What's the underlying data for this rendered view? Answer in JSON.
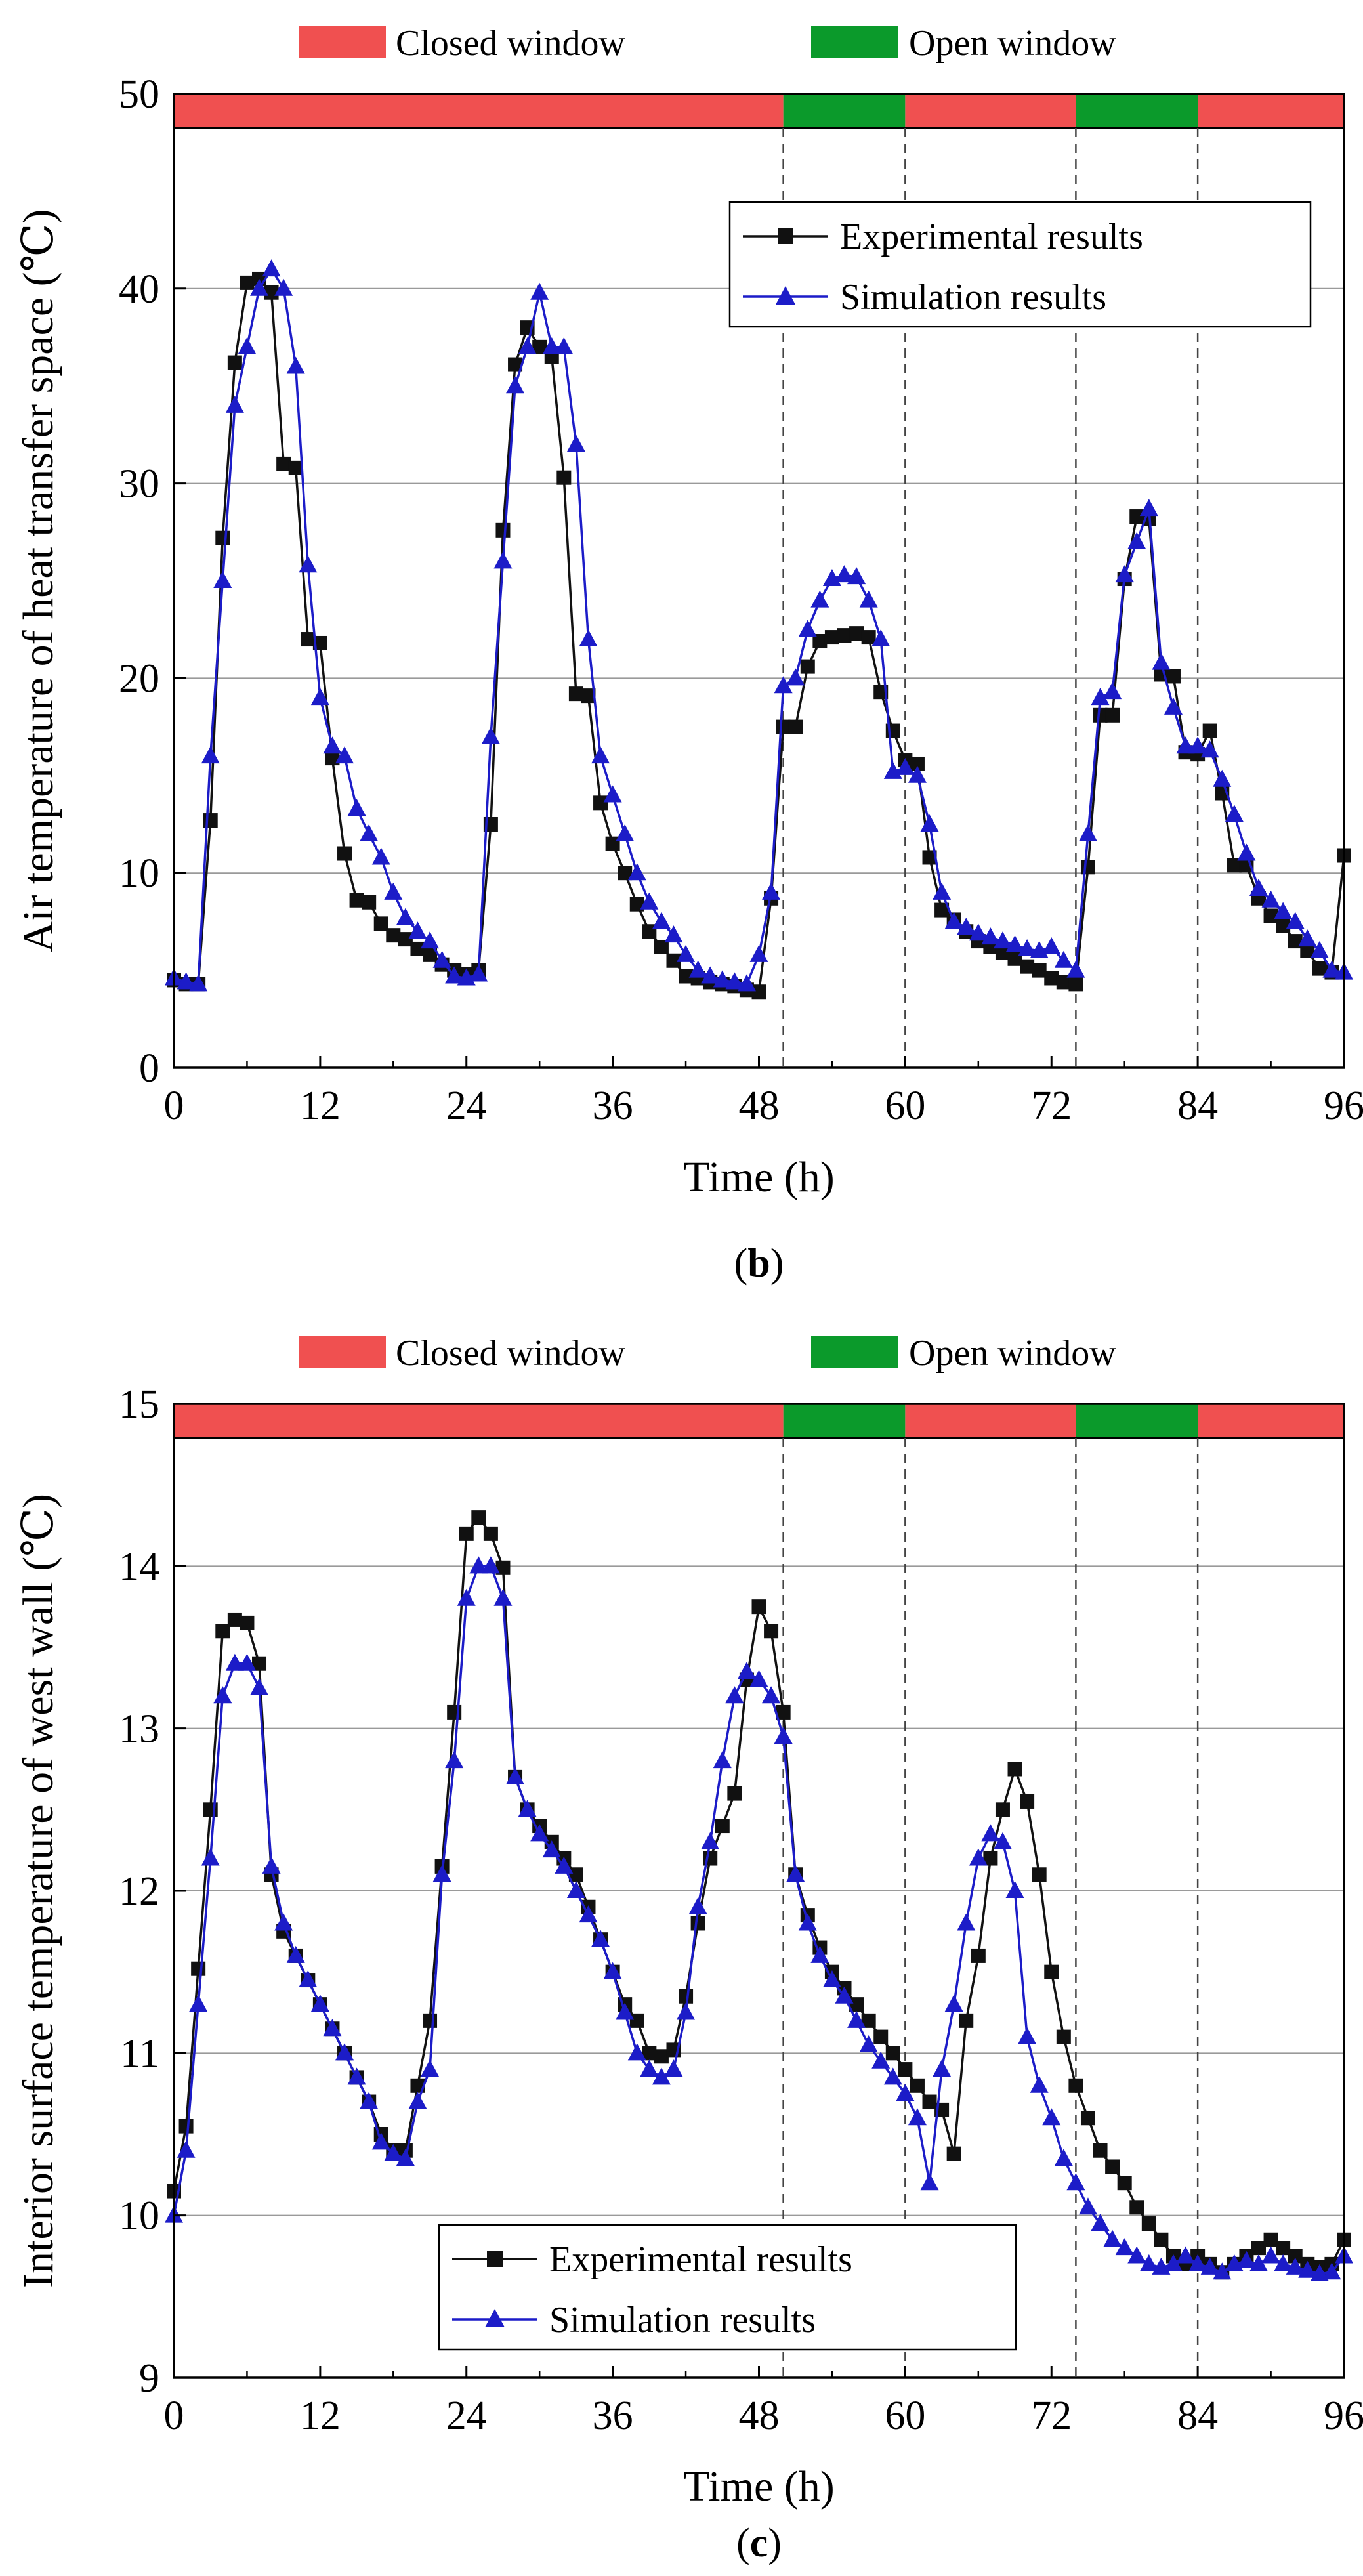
{
  "chart_data": [
    {
      "id": "b",
      "type": "line",
      "panel_label": "(b)",
      "panel_label_parts": [
        "(",
        "b",
        ")"
      ],
      "xlabel": "Time (h)",
      "ylabel": "Air temperature of heat transfer space (℃)",
      "xlim": [
        0,
        96
      ],
      "ylim": [
        0,
        50
      ],
      "xticks": [
        "0",
        "12",
        "24",
        "36",
        "48",
        "60",
        "72",
        "84",
        "96"
      ],
      "yticks": [
        "0",
        "10",
        "20",
        "30",
        "40",
        "50"
      ],
      "grid": "horizontal",
      "window_band": {
        "legend": [
          {
            "label": "Closed window",
            "color": "#f05050"
          },
          {
            "label": "Open window",
            "color": "#0b9a2b"
          }
        ],
        "segments": [
          {
            "state": "closed",
            "from": 0,
            "to": 50
          },
          {
            "state": "open",
            "from": 50,
            "to": 60
          },
          {
            "state": "closed",
            "from": 60,
            "to": 74
          },
          {
            "state": "open",
            "from": 74,
            "to": 84
          },
          {
            "state": "closed",
            "from": 84,
            "to": 96
          }
        ],
        "dashed_lines_x": [
          50,
          60,
          74,
          84
        ]
      },
      "legend": "top-right",
      "series": [
        {
          "name": "Experimental results",
          "color": "#111111",
          "marker": "square",
          "x": [
            0,
            1,
            2,
            3,
            4,
            5,
            6,
            7,
            8,
            9,
            10,
            11,
            12,
            13,
            14,
            15,
            16,
            17,
            18,
            19,
            20,
            21,
            22,
            23,
            24,
            25,
            26,
            27,
            28,
            29,
            30,
            31,
            32,
            33,
            34,
            35,
            36,
            37,
            38,
            39,
            40,
            41,
            42,
            43,
            44,
            45,
            46,
            47,
            48,
            49,
            50,
            51,
            52,
            53,
            54,
            55,
            56,
            57,
            58,
            59,
            60,
            61,
            62,
            63,
            64,
            65,
            66,
            67,
            68,
            69,
            70,
            71,
            72,
            73,
            74,
            75,
            76,
            77,
            78,
            79,
            80,
            81,
            82,
            83,
            84,
            85,
            86,
            87,
            88,
            89,
            90,
            91,
            92,
            93,
            94,
            95,
            96
          ],
          "values": [
            4.5,
            4.3,
            4.3,
            12.7,
            27.2,
            36.2,
            40.3,
            40.5,
            39.8,
            31,
            30.8,
            22,
            21.8,
            15.9,
            11,
            8.6,
            8.5,
            7.4,
            6.8,
            6.6,
            6.1,
            5.8,
            5.3,
            5,
            4.8,
            5,
            12.5,
            27.6,
            36.1,
            38,
            37,
            36.5,
            30.3,
            19.2,
            19.1,
            13.6,
            11.5,
            10,
            8.4,
            7,
            6.2,
            5.5,
            4.7,
            4.6,
            4.4,
            4.3,
            4.2,
            4,
            3.9,
            8.7,
            17.5,
            17.5,
            20.6,
            21.9,
            22.1,
            22.2,
            22.3,
            22.1,
            19.3,
            17.3,
            15.8,
            15.6,
            10.8,
            8.1,
            7.6,
            7,
            6.5,
            6.2,
            5.9,
            5.6,
            5.2,
            5,
            4.6,
            4.4,
            4.3,
            10.3,
            18.1,
            18.1,
            25.1,
            28.3,
            28.2,
            20.2,
            20.1,
            16.2,
            16.1,
            17.3,
            14.1,
            10.4,
            10.4,
            8.7,
            7.8,
            7.3,
            6.5,
            6,
            5.1,
            4.9,
            10.9
          ]
        },
        {
          "name": "Simulation results",
          "color": "#1c1cc8",
          "marker": "triangle",
          "x": [
            0,
            1,
            2,
            3,
            4,
            5,
            6,
            7,
            8,
            9,
            10,
            11,
            12,
            13,
            14,
            15,
            16,
            17,
            18,
            19,
            20,
            21,
            22,
            23,
            24,
            25,
            26,
            27,
            28,
            29,
            30,
            31,
            32,
            33,
            34,
            35,
            36,
            37,
            38,
            39,
            40,
            41,
            42,
            43,
            44,
            45,
            46,
            47,
            48,
            49,
            50,
            51,
            52,
            53,
            54,
            55,
            56,
            57,
            58,
            59,
            60,
            61,
            62,
            63,
            64,
            65,
            66,
            67,
            68,
            69,
            70,
            71,
            72,
            73,
            74,
            75,
            76,
            77,
            78,
            79,
            80,
            81,
            82,
            83,
            84,
            85,
            86,
            87,
            88,
            89,
            90,
            91,
            92,
            93,
            94,
            95,
            96
          ],
          "values": [
            4.6,
            4.4,
            4.3,
            16,
            25,
            34,
            37,
            40,
            41,
            40,
            36,
            25.8,
            19,
            16.5,
            16,
            13.3,
            12,
            10.8,
            9,
            7.7,
            7,
            6.5,
            5.5,
            4.7,
            4.6,
            4.8,
            17,
            26,
            35,
            37,
            39.8,
            37,
            37,
            32,
            22,
            16,
            14,
            12,
            10,
            8.5,
            7.5,
            6.8,
            5.8,
            5,
            4.7,
            4.5,
            4.4,
            4.3,
            5.8,
            9,
            19.6,
            20,
            22.5,
            24,
            25.1,
            25.3,
            25.2,
            24,
            22,
            15.2,
            15.4,
            15,
            12.5,
            9,
            7.5,
            7.2,
            6.9,
            6.7,
            6.5,
            6.3,
            6.1,
            6,
            6.2,
            5.5,
            5,
            12,
            19,
            19.3,
            25.3,
            27,
            28.7,
            20.8,
            18.5,
            16.5,
            16.5,
            16.3,
            14.8,
            13,
            11,
            9.2,
            8.6,
            8,
            7.5,
            6.6,
            6,
            5,
            4.9
          ]
        }
      ]
    },
    {
      "id": "c",
      "type": "line",
      "panel_label": "(c)",
      "panel_label_parts": [
        "(",
        "c",
        ")"
      ],
      "xlabel": "Time (h)",
      "ylabel": "Interior surface temperature of west wall (℃)",
      "xlim": [
        0,
        96
      ],
      "ylim": [
        9,
        15
      ],
      "xticks": [
        "0",
        "12",
        "24",
        "36",
        "48",
        "60",
        "72",
        "84",
        "96"
      ],
      "yticks": [
        "9",
        "10",
        "11",
        "12",
        "13",
        "14",
        "15"
      ],
      "grid": "horizontal",
      "window_band": {
        "legend": [
          {
            "label": "Closed window",
            "color": "#f05050"
          },
          {
            "label": "Open window",
            "color": "#0b9a2b"
          }
        ],
        "segments": [
          {
            "state": "closed",
            "from": 0,
            "to": 50
          },
          {
            "state": "open",
            "from": 50,
            "to": 60
          },
          {
            "state": "closed",
            "from": 60,
            "to": 74
          },
          {
            "state": "open",
            "from": 74,
            "to": 84
          },
          {
            "state": "closed",
            "from": 84,
            "to": 96
          }
        ],
        "dashed_lines_x": [
          50,
          60,
          74,
          84
        ]
      },
      "legend": "bottom-center",
      "series": [
        {
          "name": "Experimental results",
          "color": "#111111",
          "marker": "square",
          "x": [
            0,
            1,
            2,
            3,
            4,
            5,
            6,
            7,
            8,
            9,
            10,
            11,
            12,
            13,
            14,
            15,
            16,
            17,
            18,
            19,
            20,
            21,
            22,
            23,
            24,
            25,
            26,
            27,
            28,
            29,
            30,
            31,
            32,
            33,
            34,
            35,
            36,
            37,
            38,
            39,
            40,
            41,
            42,
            43,
            44,
            45,
            46,
            47,
            48,
            49,
            50,
            51,
            52,
            53,
            54,
            55,
            56,
            57,
            58,
            59,
            60,
            61,
            62,
            63,
            64,
            65,
            66,
            67,
            68,
            69,
            70,
            71,
            72,
            73,
            74,
            75,
            76,
            77,
            78,
            79,
            80,
            81,
            82,
            83,
            84,
            85,
            86,
            87,
            88,
            89,
            90,
            91,
            92,
            93,
            94,
            95,
            96
          ],
          "values": [
            10.15,
            10.55,
            11.52,
            12.5,
            13.6,
            13.67,
            13.65,
            13.4,
            12.1,
            11.75,
            11.6,
            11.45,
            11.3,
            11.15,
            11,
            10.85,
            10.7,
            10.5,
            10.4,
            10.4,
            10.8,
            11.2,
            12.15,
            13.1,
            14.2,
            14.3,
            14.2,
            13.99,
            12.7,
            12.5,
            12.4,
            12.3,
            12.2,
            12.1,
            11.9,
            11.7,
            11.5,
            11.3,
            11.2,
            11,
            10.98,
            11.02,
            11.35,
            11.8,
            12.2,
            12.4,
            12.6,
            13.3,
            13.75,
            13.6,
            13.1,
            12.1,
            11.85,
            11.65,
            11.5,
            11.4,
            11.3,
            11.2,
            11.1,
            11,
            10.9,
            10.8,
            10.7,
            10.65,
            10.38,
            11.2,
            11.6,
            12.2,
            12.5,
            12.75,
            12.55,
            12.1,
            11.5,
            11.1,
            10.8,
            10.6,
            10.4,
            10.3,
            10.2,
            10.05,
            9.95,
            9.85,
            9.75,
            9.7,
            9.75,
            9.7,
            9.65,
            9.7,
            9.75,
            9.8,
            9.85,
            9.8,
            9.75,
            9.7,
            9.68,
            9.7,
            9.85
          ]
        },
        {
          "name": "Simulation results",
          "color": "#1c1cc8",
          "marker": "triangle",
          "x": [
            0,
            1,
            2,
            3,
            4,
            5,
            6,
            7,
            8,
            9,
            10,
            11,
            12,
            13,
            14,
            15,
            16,
            17,
            18,
            19,
            20,
            21,
            22,
            23,
            24,
            25,
            26,
            27,
            28,
            29,
            30,
            31,
            32,
            33,
            34,
            35,
            36,
            37,
            38,
            39,
            40,
            41,
            42,
            43,
            44,
            45,
            46,
            47,
            48,
            49,
            50,
            51,
            52,
            53,
            54,
            55,
            56,
            57,
            58,
            59,
            60,
            61,
            62,
            63,
            64,
            65,
            66,
            67,
            68,
            69,
            70,
            71,
            72,
            73,
            74,
            75,
            76,
            77,
            78,
            79,
            80,
            81,
            82,
            83,
            84,
            85,
            86,
            87,
            88,
            89,
            90,
            91,
            92,
            93,
            94,
            95,
            96
          ],
          "values": [
            10,
            10.4,
            11.3,
            12.2,
            13.2,
            13.4,
            13.4,
            13.25,
            12.15,
            11.8,
            11.6,
            11.45,
            11.3,
            11.15,
            11,
            10.85,
            10.7,
            10.45,
            10.38,
            10.35,
            10.7,
            10.9,
            12.1,
            12.8,
            13.8,
            14,
            14,
            13.8,
            12.7,
            12.5,
            12.35,
            12.25,
            12.15,
            12,
            11.85,
            11.7,
            11.5,
            11.25,
            11,
            10.9,
            10.85,
            10.9,
            11.25,
            11.9,
            12.3,
            12.8,
            13.2,
            13.35,
            13.3,
            13.2,
            12.95,
            12.1,
            11.8,
            11.6,
            11.45,
            11.35,
            11.2,
            11.05,
            10.95,
            10.85,
            10.75,
            10.6,
            10.2,
            10.9,
            11.3,
            11.8,
            12.2,
            12.35,
            12.3,
            12,
            11.1,
            10.8,
            10.6,
            10.35,
            10.2,
            10.05,
            9.95,
            9.85,
            9.8,
            9.75,
            9.7,
            9.68,
            9.7,
            9.75,
            9.7,
            9.68,
            9.65,
            9.7,
            9.72,
            9.7,
            9.75,
            9.7,
            9.68,
            9.66,
            9.64,
            9.65,
            9.75
          ]
        }
      ]
    }
  ]
}
